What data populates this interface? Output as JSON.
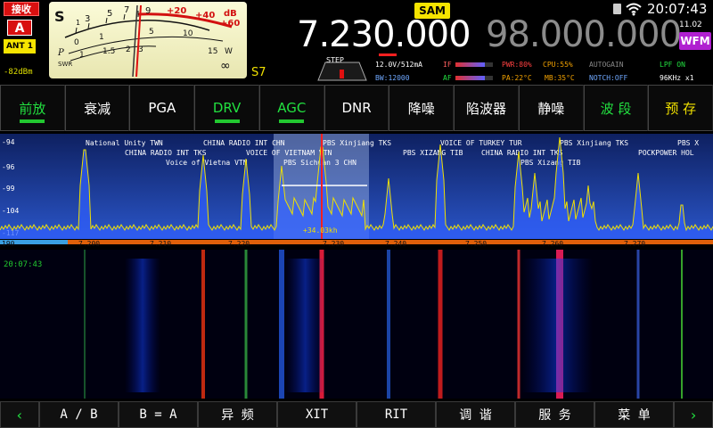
{
  "topleft": {
    "rx_label": "接收",
    "vfo_label": "A",
    "ant_label": "ANT 1",
    "level": "-82dBm"
  },
  "meter": {
    "s_label": "S",
    "s_scale": [
      "1",
      "3",
      "5",
      "7",
      "9"
    ],
    "plus_scale": [
      "+20",
      "+40",
      "+60"
    ],
    "db_label": "dB",
    "p_scale": [
      "0",
      "1",
      "5",
      "10",
      "15"
    ],
    "power_unit": "W",
    "swr_label": "SWR",
    "swr_scale": [
      "1",
      "1.5",
      "2",
      "3"
    ],
    "p_label": "P",
    "inf": "∞",
    "s_reading": "S7"
  },
  "vfo_a": {
    "mode": "SAM",
    "frequency": "7.230.000"
  },
  "vfo_b": {
    "frequency": "98.000.000",
    "mode": "WFM",
    "date": "11.02"
  },
  "clock": "20:07:43",
  "step": {
    "label": "STEP"
  },
  "status": {
    "supply": "12.0V/512mA",
    "if_label": "IF",
    "af_label": "AF",
    "bw": "BW:12000",
    "pwr": "PWR:80%",
    "cpu": "CPU:55%",
    "autogain": "AUTOGAIN",
    "pa_temp": "PA:22°C",
    "mb_temp": "MB:35°C",
    "notch": "NOTCH:OFF",
    "lpf": "LPF ON",
    "span": "96KHz x1"
  },
  "func_buttons": [
    {
      "label": "前放",
      "style": "green",
      "indicator": true
    },
    {
      "label": "衰减",
      "style": "white",
      "indicator": false
    },
    {
      "label": "PGA",
      "style": "white",
      "indicator": false
    },
    {
      "label": "DRV",
      "style": "green",
      "indicator": true
    },
    {
      "label": "AGC",
      "style": "green",
      "indicator": true
    },
    {
      "label": "DNR",
      "style": "white",
      "indicator": false
    },
    {
      "label": "降噪",
      "style": "white",
      "indicator": false
    },
    {
      "label": "陷波器",
      "style": "white",
      "indicator": false
    },
    {
      "label": "静噪",
      "style": "white",
      "indicator": false
    },
    {
      "label": "波 段",
      "style": "green",
      "indicator": false
    },
    {
      "label": "预 存",
      "style": "yellow",
      "indicator": false
    }
  ],
  "spectrum": {
    "db_labels": [
      "-94",
      "-96",
      "-99",
      "-104",
      "-117"
    ],
    "freq_labels": [
      "190",
      "7.200",
      "7.210",
      "7.220",
      "7.230",
      "7.240",
      "7.250",
      "7.260",
      "7.270"
    ],
    "cursor_label": "+34.03kh",
    "stations_row1": [
      "National Unity TWN",
      "CHINA RADIO INT CHN",
      "PBS Xinjiang TKS",
      "VOICE OF TURKEY TUR",
      "PBS Xinjiang TKS",
      "PBS X"
    ],
    "stations_row2": [
      "CHINA RADIO INT TKS",
      "VOICE OF VIETNAM VTN",
      "PBS XIZANG TIB",
      "CHINA RADIO INT TKS",
      "POCKPOWER HOL"
    ],
    "stations_row3": [
      "Voice of Vietna VTN",
      "PBS Sichuan 3 CHN",
      "PBS Xizang TIB"
    ]
  },
  "waterfall": {
    "timestamp": "20:07:43"
  },
  "bottom_buttons": [
    {
      "label": "‹",
      "arrow": true
    },
    {
      "label": "A / B",
      "arrow": false
    },
    {
      "label": "B = A",
      "arrow": false
    },
    {
      "label": "异 频",
      "arrow": false
    },
    {
      "label": "XIT",
      "arrow": false
    },
    {
      "label": "RIT",
      "arrow": false
    },
    {
      "label": "调 谐",
      "arrow": false
    },
    {
      "label": "服 务",
      "arrow": false
    },
    {
      "label": "菜 单",
      "arrow": false
    },
    {
      "label": "›",
      "arrow": true
    }
  ],
  "colors": {
    "accent_red": "#d81010",
    "yellow": "#f6e400",
    "green": "#22e040",
    "spectrum_bg": "#1c3a9a",
    "wfm_purple": "#b020d0"
  }
}
